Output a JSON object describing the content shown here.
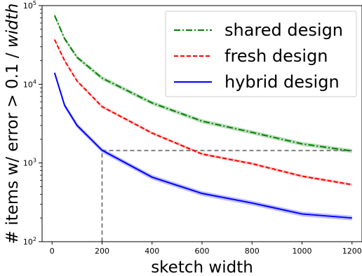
{
  "chart_data": {
    "type": "line",
    "xlabel": "sketch width",
    "ylabel_prefix": "# items w/ error > 0.1 / ",
    "ylabel_emphasis": "width",
    "x_ticks": [
      0,
      200,
      400,
      600,
      800,
      1000,
      1200
    ],
    "y_scale": "log",
    "xlim": [
      -40,
      1240
    ],
    "ylim": [
      100,
      100000
    ],
    "y_ticks": [
      {
        "value": 100,
        "base": "10",
        "exp": "2"
      },
      {
        "value": 1000,
        "base": "10",
        "exp": "3"
      },
      {
        "value": 10000,
        "base": "10",
        "exp": "4"
      },
      {
        "value": 100000,
        "base": "10",
        "exp": "5"
      }
    ],
    "legend_position": "upper right",
    "x": [
      10,
      50,
      100,
      200,
      400,
      600,
      800,
      1000,
      1200
    ],
    "series": [
      {
        "name": "shared design",
        "color": "#008000",
        "style": "dash-dot",
        "values": [
          75000,
          38000,
          22000,
          12000,
          5800,
          3400,
          2450,
          1750,
          1420
        ],
        "band": 0.06
      },
      {
        "name": "fresh design",
        "color": "#ff0000",
        "style": "dashed",
        "values": [
          37000,
          20000,
          11000,
          5200,
          2400,
          1300,
          980,
          680,
          530
        ],
        "band": 0.04
      },
      {
        "name": "hybrid design",
        "color": "#0000ff",
        "style": "solid",
        "values": [
          14000,
          5400,
          3000,
          1450,
          660,
          410,
          310,
          225,
          200
        ],
        "band": 0.07
      }
    ],
    "reference_lines": {
      "color": "#808080",
      "x": 200,
      "y": 1440,
      "x_end": 1200
    }
  }
}
